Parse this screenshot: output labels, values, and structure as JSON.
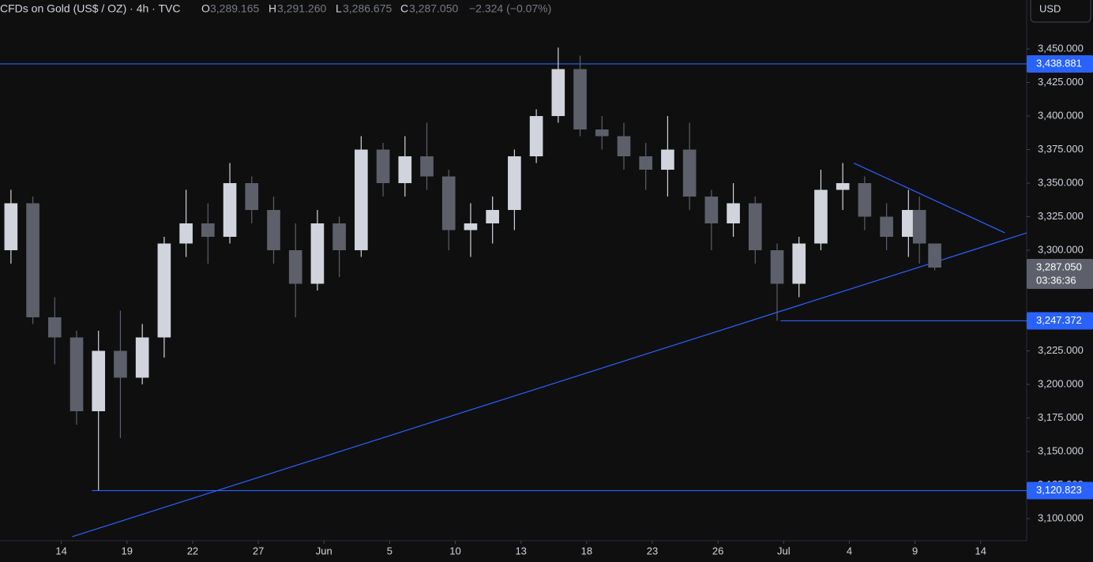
{
  "header": {
    "symbol": "CFDs on Gold (US$ / OZ) · 4h · TVC",
    "open_label": "O",
    "open": "3,289.165",
    "high_label": "H",
    "high": "3,291.260",
    "low_label": "L",
    "low": "3,286.675",
    "close_label": "C",
    "close": "3,287.050",
    "change": "−2.324 (−0.07%)"
  },
  "currency_button": "USD",
  "chart_data": {
    "type": "candlestick",
    "x": [
      -2.3,
      -1.3,
      -0.3,
      0.7,
      1.7,
      2.7,
      3.7,
      4.7,
      5.7,
      6.7,
      7.7,
      8.7,
      9.7,
      10.7,
      11.7,
      12.7,
      13.7,
      14.7,
      15.7,
      16.7,
      17.7,
      18.7,
      19.7,
      20.7,
      21.7,
      22.7,
      23.7,
      24.7,
      25.7,
      26.7,
      27.7,
      28.7,
      29.7,
      30.7,
      31.7,
      32.7,
      33.7,
      34.7,
      35.7,
      36.7,
      37.7,
      38.7,
      39.2,
      39.9
    ],
    "open": [
      3300,
      3335,
      3250,
      3235,
      3180,
      3225,
      3205,
      3235,
      3305,
      3320,
      3310,
      3350,
      3330,
      3300,
      3275,
      3320,
      3300,
      3375,
      3350,
      3370,
      3355,
      3315,
      3320,
      3330,
      3370,
      3400,
      3435,
      3390,
      3385,
      3370,
      3360,
      3375,
      3340,
      3320,
      3335,
      3300,
      3275,
      3305,
      3345,
      3350,
      3325,
      3310,
      3330,
      3305
    ],
    "high": [
      3345,
      3340,
      3265,
      3240,
      3240,
      3255,
      3245,
      3310,
      3345,
      3335,
      3365,
      3355,
      3340,
      3320,
      3330,
      3325,
      3385,
      3380,
      3385,
      3395,
      3360,
      3335,
      3340,
      3375,
      3405,
      3451,
      3445,
      3400,
      3395,
      3380,
      3400,
      3395,
      3345,
      3350,
      3340,
      3305,
      3310,
      3360,
      3365,
      3355,
      3335,
      3345,
      3340,
      3305
    ],
    "low": [
      3290,
      3245,
      3215,
      3170,
      3121,
      3160,
      3200,
      3220,
      3295,
      3290,
      3305,
      3320,
      3290,
      3250,
      3270,
      3280,
      3295,
      3340,
      3340,
      3345,
      3300,
      3295,
      3305,
      3315,
      3365,
      3395,
      3385,
      3375,
      3360,
      3345,
      3340,
      3330,
      3300,
      3310,
      3290,
      3247.4,
      3265,
      3300,
      3330,
      3315,
      3300,
      3295,
      3290,
      3285
    ],
    "close": [
      3335,
      3250,
      3235,
      3180,
      3225,
      3205,
      3235,
      3305,
      3320,
      3310,
      3350,
      3330,
      3300,
      3275,
      3320,
      3300,
      3375,
      3350,
      3370,
      3355,
      3315,
      3320,
      3330,
      3370,
      3400,
      3435,
      3390,
      3385,
      3370,
      3360,
      3375,
      3340,
      3320,
      3335,
      3300,
      3275,
      3305,
      3345,
      3350,
      3325,
      3310,
      3330,
      3305,
      3287.05
    ],
    "up_color": "#d1d4dc",
    "down_color": "#5d606b",
    "line_color": "#2962ff",
    "xlim": [
      -2.8,
      44.1
    ],
    "xticks": [
      {
        "value": 0,
        "label": "14"
      },
      {
        "value": 3,
        "label": "19"
      },
      {
        "value": 6,
        "label": "22"
      },
      {
        "value": 9,
        "label": "27"
      },
      {
        "value": 12,
        "label": "Jun"
      },
      {
        "value": 15,
        "label": "5"
      },
      {
        "value": 18,
        "label": "10"
      },
      {
        "value": 21,
        "label": "13"
      },
      {
        "value": 24,
        "label": "18"
      },
      {
        "value": 27,
        "label": "23"
      },
      {
        "value": 30,
        "label": "26"
      },
      {
        "value": 33,
        "label": "Jul"
      },
      {
        "value": 36,
        "label": "4"
      },
      {
        "value": 39,
        "label": "9"
      },
      {
        "value": 42,
        "label": "14"
      }
    ],
    "ylim": [
      3083.5,
      3486.5
    ],
    "yticks": [
      {
        "value": 3100,
        "label": "3,100.000"
      },
      {
        "value": 3125,
        "label": "3,125.000"
      },
      {
        "value": 3150,
        "label": "3,150.000"
      },
      {
        "value": 3175,
        "label": "3,175.000"
      },
      {
        "value": 3200,
        "label": "3,200.000"
      },
      {
        "value": 3225,
        "label": "3,225.000"
      },
      {
        "value": 3250,
        "label": "3,250.000"
      },
      {
        "value": 3275,
        "label": "3,275.000"
      },
      {
        "value": 3300,
        "label": "3,300.000"
      },
      {
        "value": 3325,
        "label": "3,325.000"
      },
      {
        "value": 3350,
        "label": "3,350.000"
      },
      {
        "value": 3375,
        "label": "3,375.000"
      },
      {
        "value": 3400,
        "label": "3,400.000"
      },
      {
        "value": 3425,
        "label": "3,425.000"
      },
      {
        "value": 3450,
        "label": "3,450.000"
      }
    ],
    "levels": [
      {
        "value": 3438.881,
        "label": "3,438.881",
        "x_start": -2.8
      },
      {
        "value": 3247.372,
        "label": "3,247.372",
        "x_start": 32.85
      },
      {
        "value": 3120.823,
        "label": "3,120.823",
        "x_start": 1.4
      }
    ],
    "trendlines": [
      {
        "x": [
          0.5,
          44.1
        ],
        "y": [
          3086.5,
          3312.9
        ]
      },
      {
        "x": [
          36.2,
          43.1
        ],
        "y": [
          3365,
          3313
        ]
      }
    ],
    "last_price": {
      "value": 3287.05,
      "label": "3,287.050",
      "countdown": "03:36:36"
    }
  }
}
